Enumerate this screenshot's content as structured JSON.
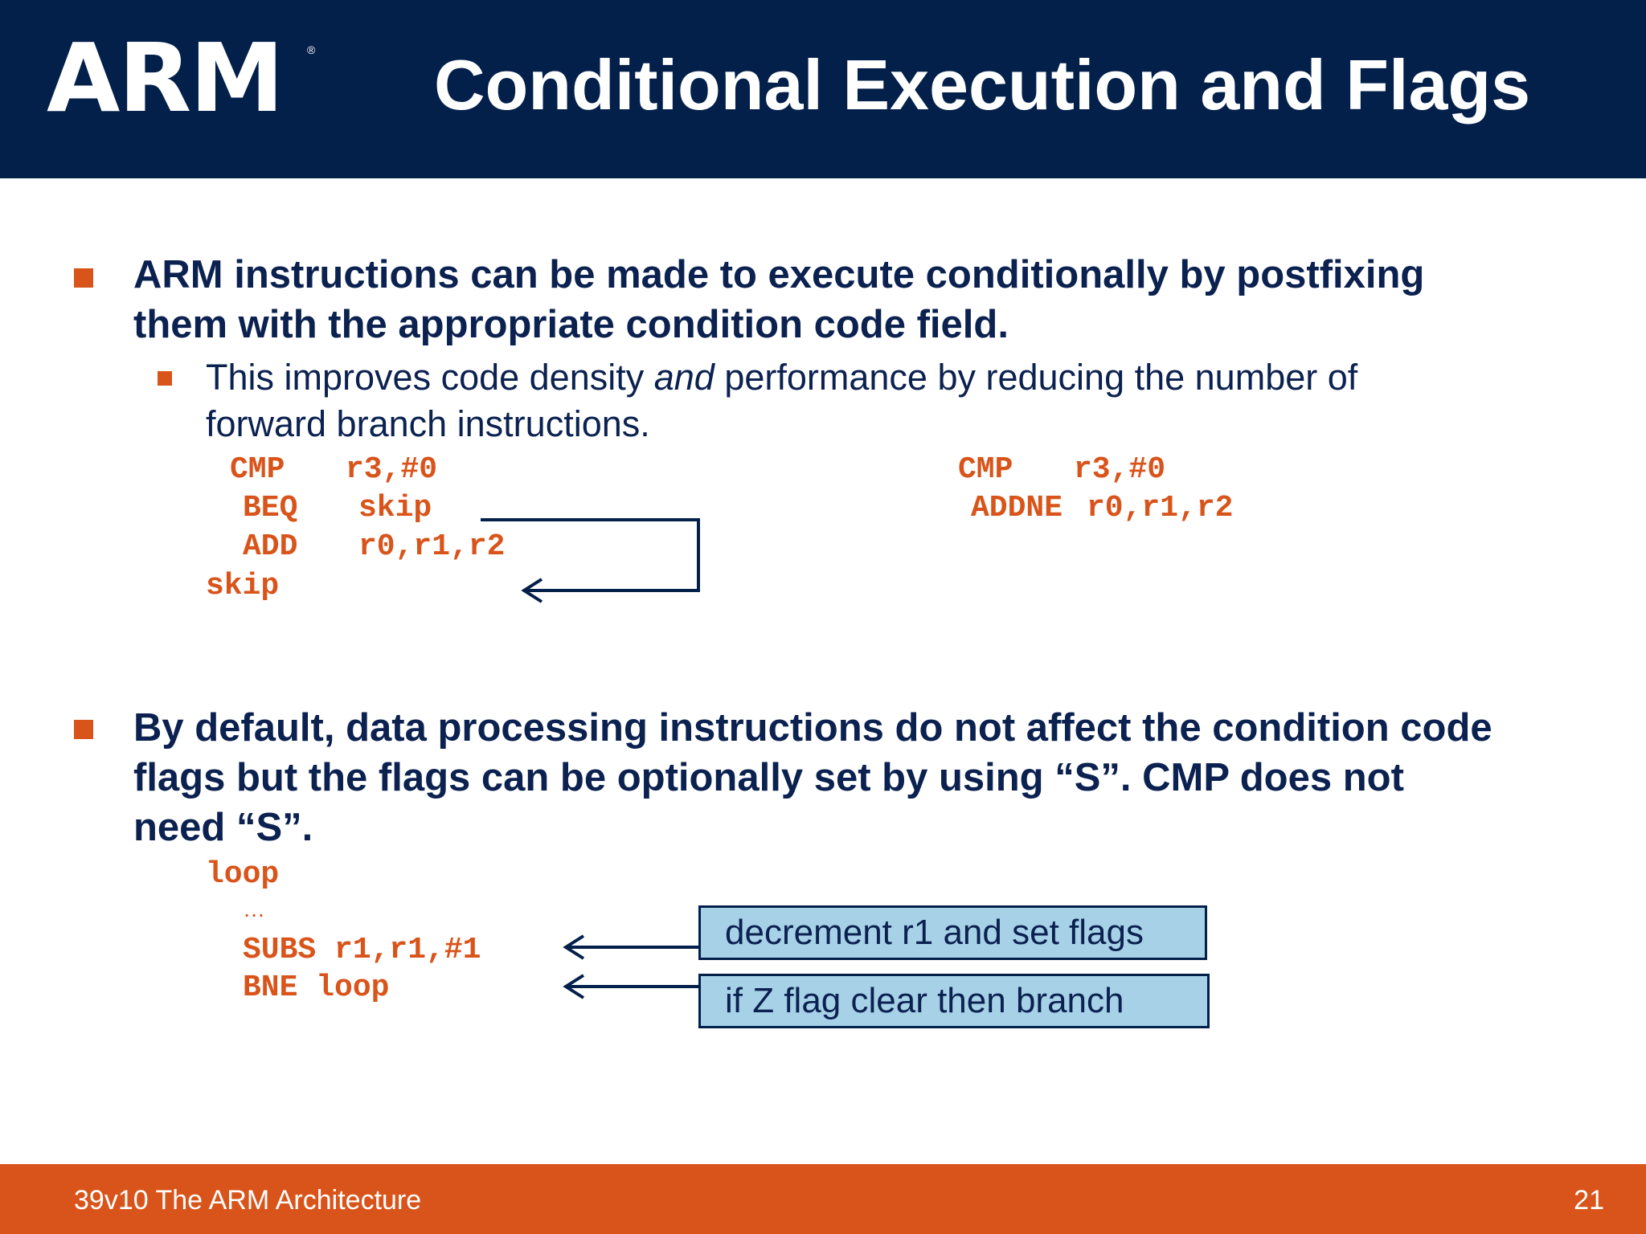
{
  "header": {
    "logo_text": "ARM",
    "logo_mark": "®",
    "title": "Conditional Execution and Flags"
  },
  "bullets": [
    {
      "lines": [
        "ARM instructions can be made to execute conditionally by postfixing",
        "them with the appropriate condition code field."
      ]
    },
    {
      "lines": [
        "By default, data processing instructions do not affect the condition code",
        "flags but the flags can be optionally set by using “S”.  CMP does not",
        "need “S”."
      ]
    }
  ],
  "sub_bullet": {
    "before": "This improves code density ",
    "emph": "and",
    "after": " performance by reducing the number of",
    "line2": "forward branch instructions."
  },
  "code_left": {
    "cmp": "CMP",
    "cmp_args": "r3,#0",
    "beq": "BEQ",
    "beq_args": "skip",
    "add": "ADD",
    "add_args": "r0,r1,r2",
    "label": "skip"
  },
  "code_right": {
    "cmp": "CMP",
    "cmp_args": "r3,#0",
    "addne": "ADDNE",
    "addne_args": "r0,r1,r2"
  },
  "code_loop": {
    "label": "loop",
    "ellipsis": "…",
    "subs": "SUBS r1,r1,#1",
    "bne": "BNE loop"
  },
  "callouts": {
    "subs": "decrement r1 and set flags",
    "bne": "if Z flag clear then branch"
  },
  "footer": {
    "text": "39v10 The ARM Architecture",
    "page": "21"
  },
  "colors": {
    "navy": "#03204a",
    "orange": "#d9541a",
    "callout_fill": "#a7d1e7"
  }
}
